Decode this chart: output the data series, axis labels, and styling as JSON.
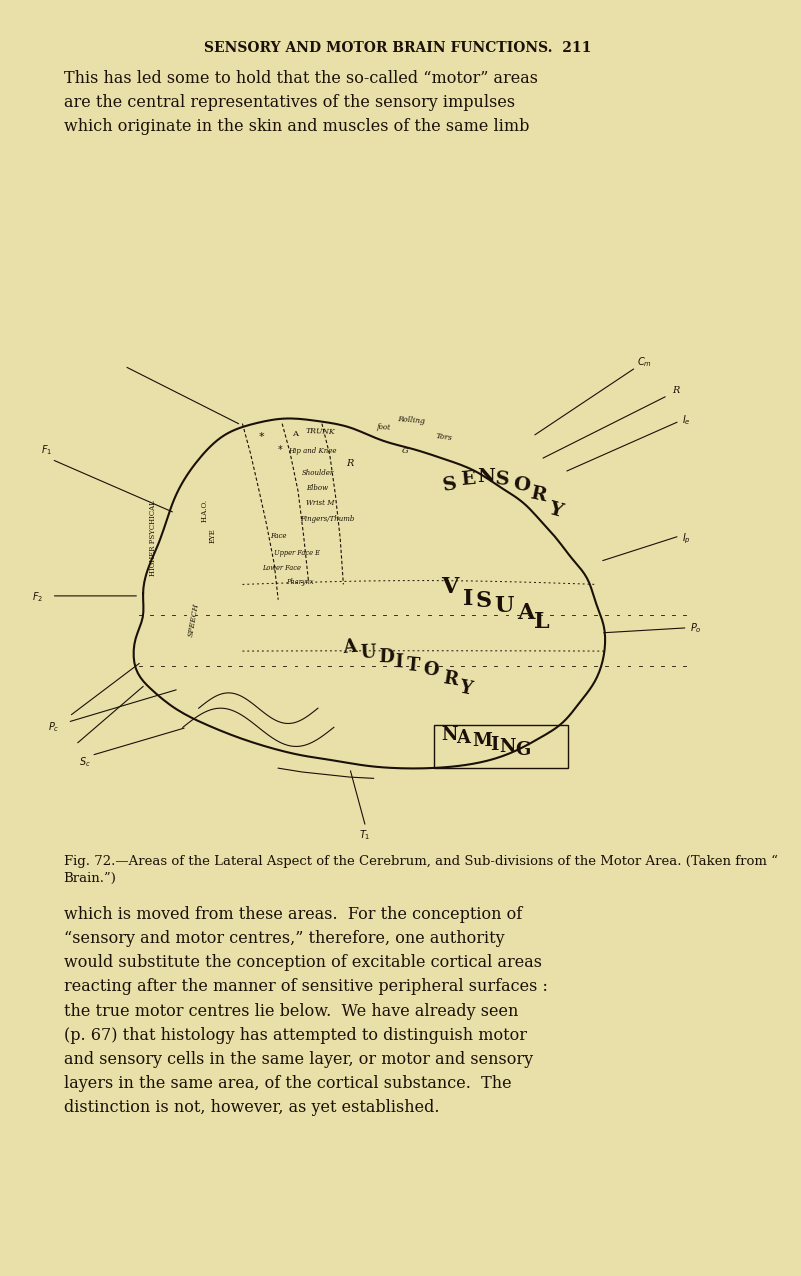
{
  "bg_color": "#e8e0a8",
  "page_width": 8.01,
  "page_height": 12.76,
  "header_text": "SENSORY AND MOTOR BRAIN FUNCTIONS.  211",
  "para1": "This has led some to hold that the so-called “motor” areas\nare the central representatives of the sensory impulses\nwhich originate in the skin and muscles of the same limb",
  "fig_caption_line1": "Fig. 72.—Areas of the Lateral Aspect of the Cerebrum, and Sub-divisions of the Motor Area.  (Taken from “ Brain.”)",
  "para2": "which is moved from these areas.  For the conception of\n“sensory and motor centres,” therefore, one authority\nwould substitute the conception of excitable cortical areas\nreacting after the manner of sensitive peripheral surfaces :\nthe true motor centres lie below.  We have already seen\n(p. 67) that histology has attempted to distinguish motor\nand sensory cells in the same layer, or motor and sensory\nlayers in the same area, of the cortical substance.  The\ndistinction is not, however, as yet established.",
  "text_color": "#1a1008",
  "header_font_size": 10,
  "body_font_size": 11.5,
  "caption_font_size": 9.5
}
